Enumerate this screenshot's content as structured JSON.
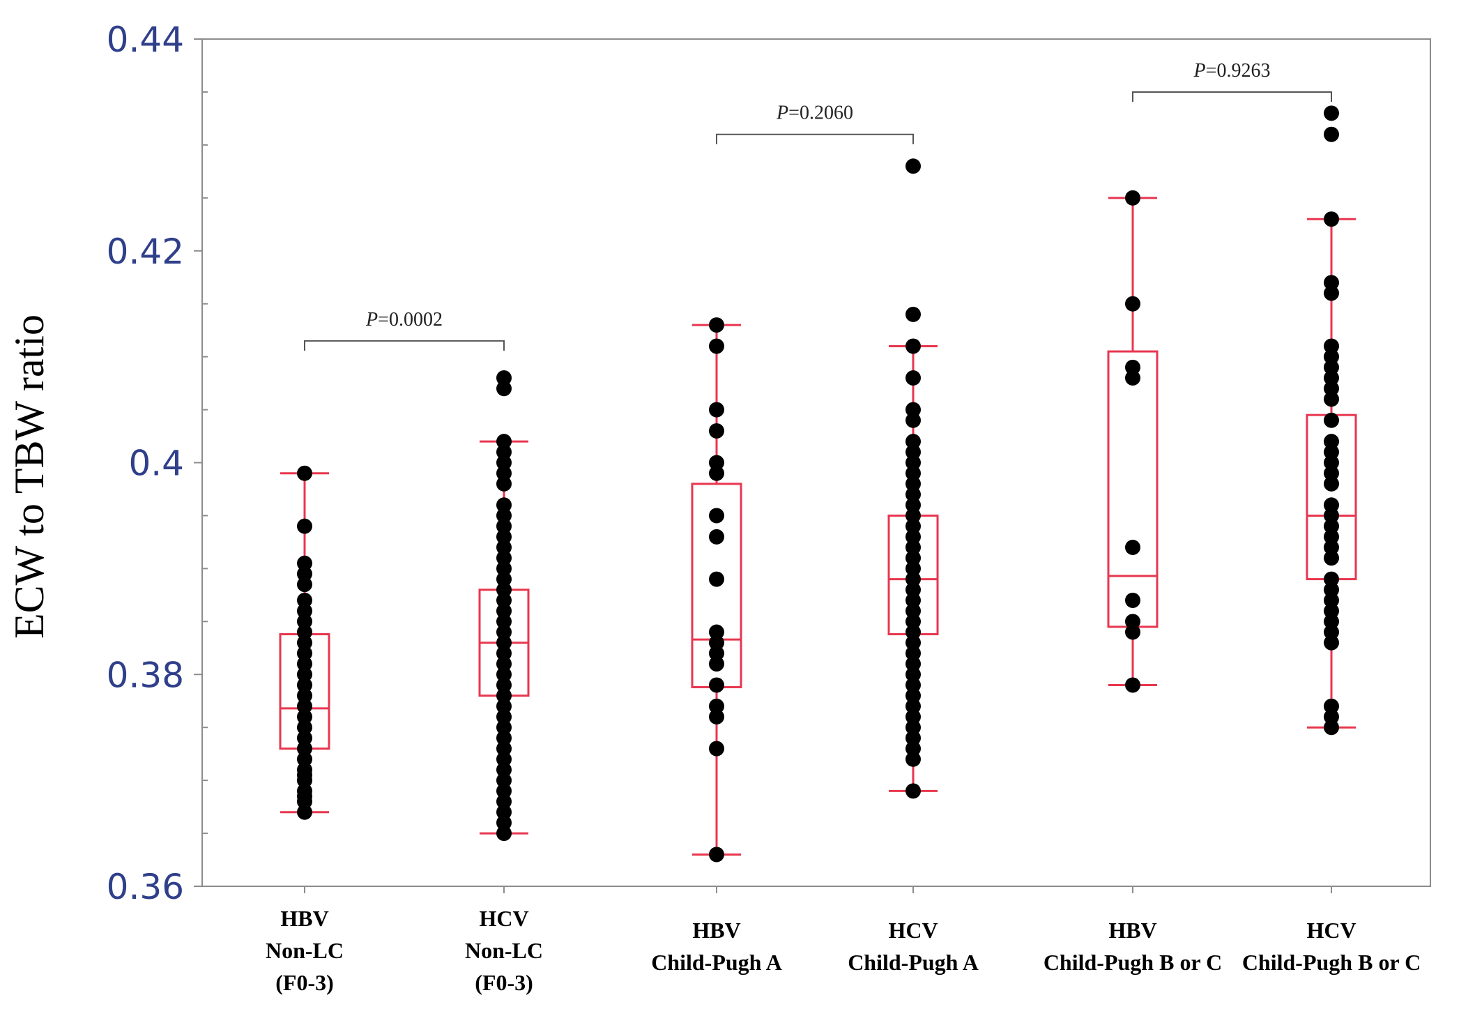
{
  "chart_data": {
    "type": "box",
    "title": "",
    "xlabel": "",
    "ylabel": "ECW to TBW ratio",
    "ylim": [
      0.36,
      0.44
    ],
    "yticks": [
      "0.36",
      "0.38",
      "0.4",
      "0.42",
      "0.44"
    ],
    "grid": false,
    "colors": {
      "box": "#e8364f",
      "points": "#000000",
      "axis": "#8c8c8c",
      "bracket": "#555555",
      "ytick": "#2f3f8a"
    },
    "categories": [
      {
        "lines": [
          "HBV",
          "Non-LC",
          "(F0-3)"
        ],
        "whisker_low": 0.367,
        "q1": 0.373,
        "median": 0.3768,
        "q3": 0.3838,
        "whisker_high": 0.399,
        "points": [
          0.399,
          0.394,
          0.3905,
          0.3895,
          0.3885,
          0.387,
          0.386,
          0.385,
          0.384,
          0.383,
          0.382,
          0.381,
          0.38,
          0.379,
          0.378,
          0.377,
          0.376,
          0.375,
          0.374,
          0.373,
          0.372,
          0.371,
          0.3705,
          0.37,
          0.369,
          0.3685,
          0.368,
          0.367
        ]
      },
      {
        "lines": [
          "HCV",
          "Non-LC",
          "(F0-3)"
        ],
        "whisker_low": 0.365,
        "q1": 0.378,
        "median": 0.383,
        "q3": 0.388,
        "whisker_high": 0.402,
        "points": [
          0.408,
          0.407,
          0.402,
          0.401,
          0.4,
          0.399,
          0.398,
          0.396,
          0.395,
          0.394,
          0.393,
          0.392,
          0.391,
          0.39,
          0.389,
          0.388,
          0.387,
          0.386,
          0.385,
          0.384,
          0.383,
          0.382,
          0.381,
          0.38,
          0.379,
          0.378,
          0.377,
          0.376,
          0.375,
          0.374,
          0.373,
          0.372,
          0.371,
          0.37,
          0.369,
          0.368,
          0.367,
          0.366,
          0.365
        ]
      },
      {
        "lines": [
          "HBV",
          "Child-Pugh A"
        ],
        "whisker_low": 0.363,
        "q1": 0.3788,
        "median": 0.3833,
        "q3": 0.398,
        "whisker_high": 0.413,
        "points": [
          0.413,
          0.411,
          0.405,
          0.403,
          0.4,
          0.399,
          0.395,
          0.393,
          0.389,
          0.384,
          0.383,
          0.382,
          0.381,
          0.379,
          0.377,
          0.376,
          0.373,
          0.363
        ]
      },
      {
        "lines": [
          "HCV",
          "Child-Pugh A"
        ],
        "whisker_low": 0.369,
        "q1": 0.3838,
        "median": 0.389,
        "q3": 0.395,
        "whisker_high": 0.411,
        "points": [
          0.428,
          0.414,
          0.411,
          0.408,
          0.405,
          0.404,
          0.402,
          0.401,
          0.4,
          0.399,
          0.398,
          0.397,
          0.396,
          0.395,
          0.394,
          0.393,
          0.392,
          0.391,
          0.39,
          0.389,
          0.388,
          0.387,
          0.386,
          0.385,
          0.384,
          0.383,
          0.382,
          0.381,
          0.38,
          0.379,
          0.378,
          0.377,
          0.376,
          0.375,
          0.374,
          0.373,
          0.372,
          0.369
        ]
      },
      {
        "lines": [
          "HBV",
          "Child-Pugh B or C"
        ],
        "whisker_low": 0.379,
        "q1": 0.3845,
        "median": 0.3893,
        "q3": 0.4105,
        "whisker_high": 0.425,
        "points": [
          0.425,
          0.415,
          0.409,
          0.408,
          0.392,
          0.387,
          0.385,
          0.384,
          0.379
        ]
      },
      {
        "lines": [
          "HCV",
          "Child-Pugh B or C"
        ],
        "whisker_low": 0.375,
        "q1": 0.389,
        "median": 0.395,
        "q3": 0.4045,
        "whisker_high": 0.423,
        "points": [
          0.433,
          0.431,
          0.423,
          0.417,
          0.416,
          0.411,
          0.41,
          0.409,
          0.408,
          0.407,
          0.406,
          0.404,
          0.402,
          0.401,
          0.4,
          0.399,
          0.398,
          0.396,
          0.395,
          0.394,
          0.393,
          0.392,
          0.391,
          0.389,
          0.388,
          0.387,
          0.386,
          0.385,
          0.384,
          0.383,
          0.377,
          0.376,
          0.375
        ]
      }
    ],
    "comparisons": [
      {
        "from": 0,
        "to": 1,
        "level": 0.4115,
        "label_prefix": "P",
        "label_value": "=0.0002"
      },
      {
        "from": 2,
        "to": 3,
        "level": 0.431,
        "label_prefix": "P",
        "label_value": "=0.2060"
      },
      {
        "from": 4,
        "to": 5,
        "level": 0.435,
        "label_prefix": "P",
        "label_value": "=0.9263"
      }
    ]
  }
}
